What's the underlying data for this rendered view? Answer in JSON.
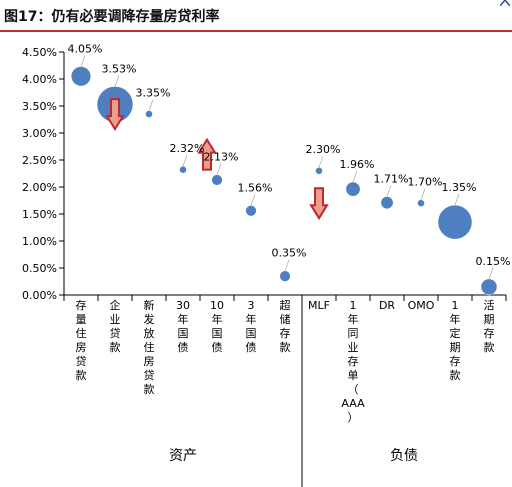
{
  "figure": {
    "title": "图17：仍有必要调降存量房贷利率"
  },
  "chart_data": {
    "type": "scatter",
    "subtype": "bubble",
    "ylim": [
      0,
      4.5
    ],
    "y_ticks": [
      "0.00%",
      "0.50%",
      "1.00%",
      "1.50%",
      "2.00%",
      "2.50%",
      "3.00%",
      "3.50%",
      "4.00%",
      "4.50%"
    ],
    "grid": false,
    "legend": "none",
    "bubble_color": "#4e7fc1",
    "arrow_color": "#c0272d",
    "categories": [
      {
        "label": "存量住房贷款",
        "value": 4.05,
        "value_label": "4.05%",
        "size": 3
      },
      {
        "label": "企业贷款",
        "value": 3.53,
        "value_label": "3.53%",
        "size": 10
      },
      {
        "label": "新发放住房贷款",
        "value": 3.35,
        "value_label": "3.35%",
        "size": 0.4
      },
      {
        "label": "30年国债",
        "value": 2.32,
        "value_label": "2.32%",
        "size": 0.4
      },
      {
        "label": "10年国债",
        "value": 2.13,
        "value_label": "2.13%",
        "size": 0.9
      },
      {
        "label": "3年国债",
        "value": 1.56,
        "value_label": "1.56%",
        "size": 0.9
      },
      {
        "label": "超储存款",
        "value": 0.35,
        "value_label": "0.35%",
        "size": 0.9
      },
      {
        "label": "MLF",
        "value": 2.3,
        "value_label": "2.30%",
        "size": 0.4
      },
      {
        "label": "1年同业存单（AAA）",
        "value": 1.96,
        "value_label": "1.96%",
        "size": 1.6
      },
      {
        "label": "DR",
        "value": 1.71,
        "value_label": "1.71%",
        "size": 1.2
      },
      {
        "label": "OMO",
        "value": 1.7,
        "value_label": "1.70%",
        "size": 0.4
      },
      {
        "label": "1年定期存款",
        "value": 1.35,
        "value_label": "1.35%",
        "size": 9
      },
      {
        "label": "活期存款",
        "value": 0.15,
        "value_label": "0.15%",
        "size": 2
      }
    ],
    "arrows": [
      {
        "near": "企业贷款",
        "direction": "down"
      },
      {
        "near": "30年国债",
        "direction": "up"
      },
      {
        "near": "MLF",
        "direction": "down"
      }
    ],
    "groups": [
      {
        "label": "资产",
        "span": [
          0,
          6
        ]
      },
      {
        "label": "负债",
        "span": [
          7,
          12
        ]
      }
    ]
  }
}
